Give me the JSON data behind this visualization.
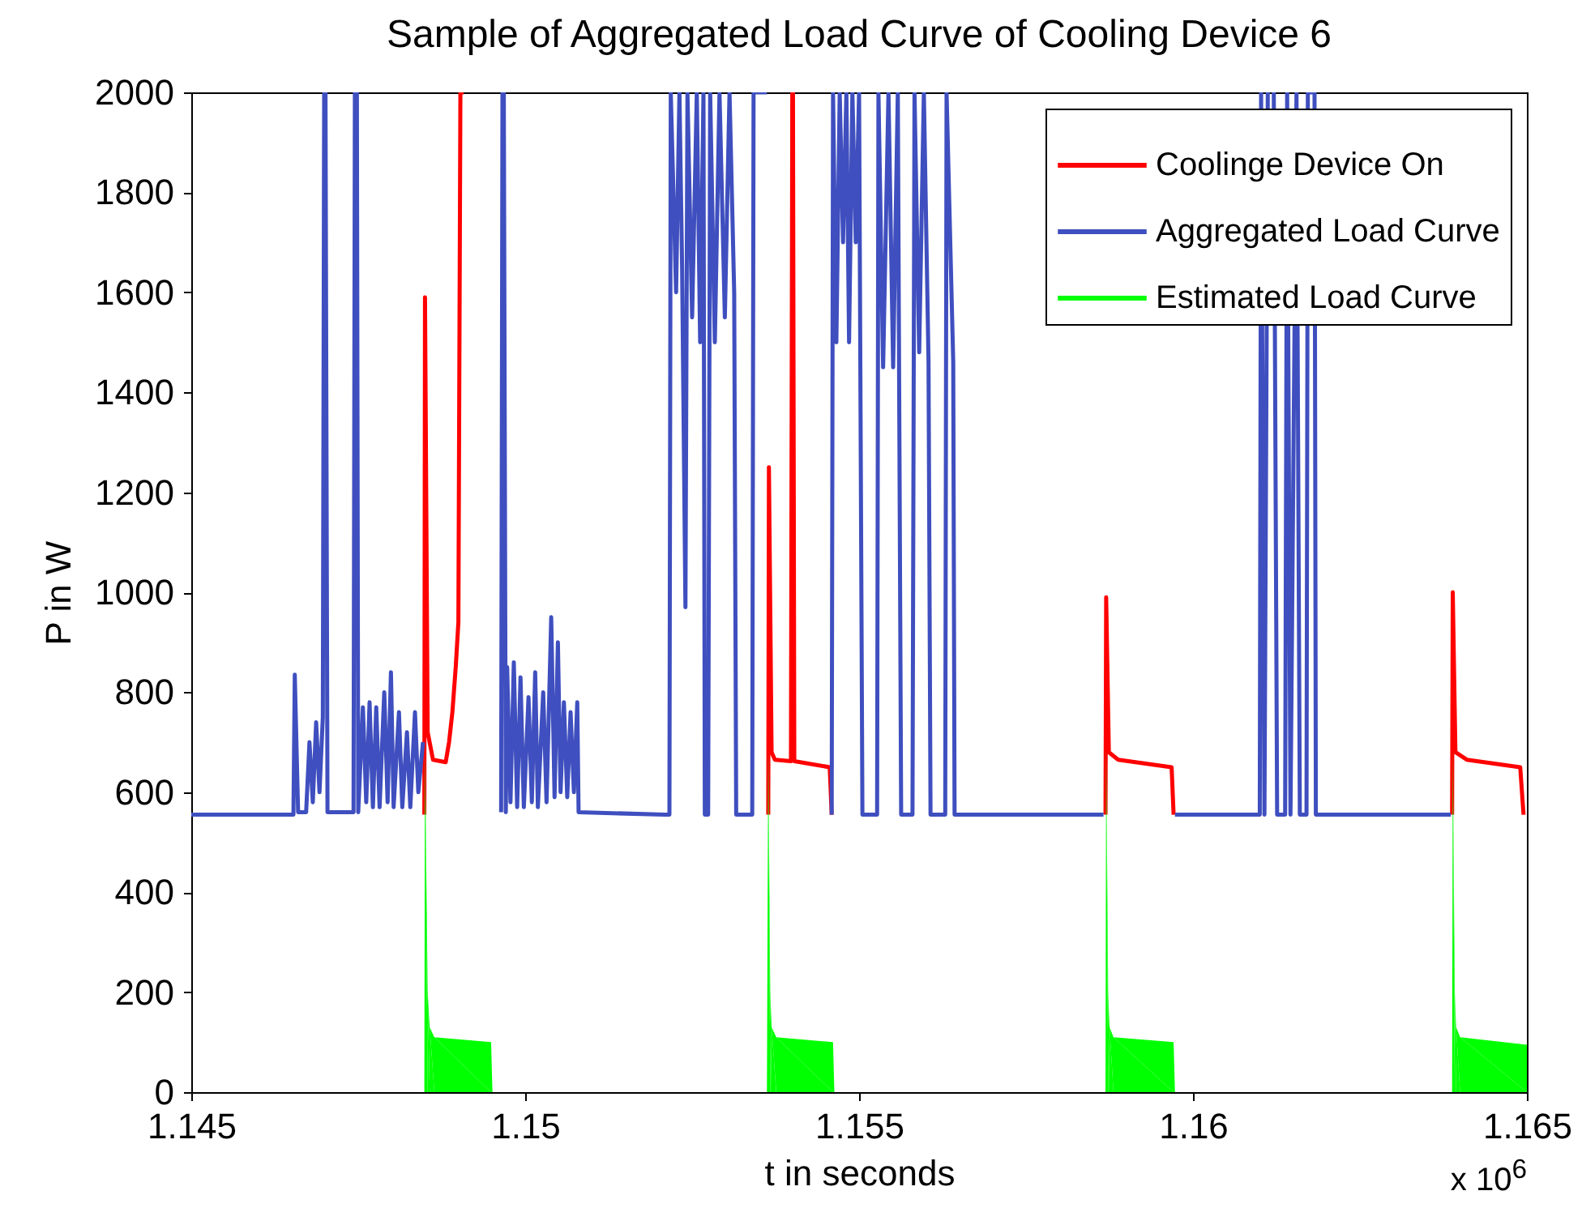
{
  "chart_data": {
    "type": "line",
    "title": "Sample of Aggregated Load Curve of Cooling Device 6",
    "xlabel": "t in seconds",
    "ylabel": "P in W",
    "xlim": [
      1.145,
      1.165
    ],
    "xticks": [
      1.145,
      1.15,
      1.155,
      1.16,
      1.165
    ],
    "ylim": [
      0,
      2000
    ],
    "yticks": [
      0,
      200,
      400,
      600,
      800,
      1000,
      1200,
      1400,
      1600,
      1800,
      2000
    ],
    "legend": "top right",
    "annotations": [
      "x 10$^{6}$"
    ],
    "series": [
      {
        "name": "Coolinge Device On",
        "color": "#ff0000",
        "x": [
          1.14849,
          1.1485,
          1.14854,
          1.14862,
          1.14881,
          1.14886,
          1.14891,
          1.14896,
          1.149,
          1.14903,
          1.14908,
          1.1491,
          1.15364,
          1.15365,
          1.15369,
          1.15374,
          1.15398,
          1.154,
          1.15401,
          1.15403,
          1.15456,
          1.15459,
          1.1546,
          1.15869,
          1.1587,
          1.15874,
          1.15888,
          1.15968,
          1.15971,
          1.15972,
          1.16388,
          1.16389,
          1.16393,
          1.1641,
          1.1649,
          1.16495
        ],
        "values": [
          555,
          1590,
          720,
          665,
          660,
          700,
          760,
          850,
          940,
          2000,
          2000,
          null,
          555,
          1250,
          680,
          665,
          662,
          2000,
          2000,
          662,
          650,
          555,
          null,
          555,
          990,
          680,
          665,
          650,
          555,
          null,
          555,
          1000,
          680,
          665,
          650,
          555
        ]
      },
      {
        "name": "Aggregated Load Curve",
        "color": "#3f4fbf",
        "x": [
          1.145,
          1.14653,
          1.14655,
          1.1466,
          1.14672,
          1.14677,
          1.14682,
          1.14687,
          1.14692,
          1.14697,
          1.14699,
          1.14701,
          1.14704,
          1.14743,
          1.14745,
          1.14748,
          1.1475,
          1.14757,
          1.14762,
          1.14767,
          1.14772,
          1.14777,
          1.14782,
          1.14789,
          1.14794,
          1.14799,
          1.14803,
          1.14811,
          1.14816,
          1.14823,
          1.14828,
          1.14835,
          1.1484,
          1.14847,
          1.1485,
          1.14964,
          1.14966,
          1.14968,
          1.14971,
          1.14973,
          1.14978,
          1.14983,
          1.14988,
          1.14993,
          1.14998,
          1.15005,
          1.1501,
          1.15015,
          1.15019,
          1.15027,
          1.15032,
          1.15039,
          1.15044,
          1.15049,
          1.15053,
          1.15058,
          1.15063,
          1.15068,
          1.15073,
          1.15078,
          1.1508,
          1.15209,
          1.15216,
          1.15218,
          1.15226,
          1.15231,
          1.15235,
          1.1524,
          1.15243,
          1.1525,
          1.15257,
          1.15262,
          1.15267,
          1.15269,
          1.15274,
          1.15277,
          1.15284,
          1.15291,
          1.15299,
          1.15306,
          1.15313,
          1.15316,
          1.1534,
          1.15342,
          1.15362,
          1.15364,
          1.15459,
          1.15461,
          1.15466,
          1.15471,
          1.15476,
          1.15481,
          1.15485,
          1.1549,
          1.15495,
          1.155,
          1.15505,
          1.15527,
          1.15529,
          1.15536,
          1.15544,
          1.15551,
          1.15558,
          1.15563,
          1.1558,
          1.15583,
          1.1559,
          1.15597,
          1.15604,
          1.15607,
          1.15629,
          1.15631,
          1.15641,
          1.15643,
          1.15866,
          1.15869,
          1.15973,
          1.161,
          1.16102,
          1.16107,
          1.16112,
          1.16117,
          1.16121,
          1.16126,
          1.16138,
          1.16141,
          1.16146,
          1.16155,
          1.1616,
          1.1617,
          1.16172,
          1.16182,
          1.16184,
          1.16386
        ],
        "values": [
          555,
          555,
          835,
          560,
          560,
          700,
          580,
          740,
          600,
          750,
          2000,
          2000,
          560,
          560,
          2000,
          2000,
          560,
          770,
          580,
          780,
          570,
          770,
          570,
          800,
          580,
          840,
          570,
          760,
          570,
          720,
          570,
          760,
          600,
          700,
          null,
          560,
          2000,
          2000,
          560,
          850,
          580,
          860,
          570,
          830,
          570,
          790,
          580,
          840,
          570,
          800,
          580,
          950,
          590,
          900,
          600,
          780,
          590,
          760,
          600,
          780,
          560,
          555,
          555,
          2000,
          1600,
          2000,
          1650,
          970,
          2000,
          1550,
          2000,
          1500,
          2000,
          555,
          555,
          2000,
          1500,
          2000,
          1550,
          2000,
          1600,
          555,
          555,
          2000,
          2000,
          null,
          555,
          2000,
          1500,
          2000,
          1700,
          2000,
          1500,
          2000,
          1700,
          2000,
          555,
          555,
          2000,
          1450,
          2000,
          1450,
          2000,
          555,
          555,
          2000,
          1480,
          2000,
          1460,
          555,
          555,
          2000,
          1460,
          555,
          555,
          null,
          555,
          555,
          2000,
          555,
          2000,
          null,
          2000,
          555,
          555,
          2000,
          555,
          2000,
          555,
          555,
          2000,
          2000,
          555,
          555
        ]
      },
      {
        "name": "Estimated Load Curve",
        "color": "#00ff00",
        "type": "area",
        "x": [
          1.145,
          1.14849,
          1.1485,
          1.14854,
          1.14857,
          1.14864,
          1.14949,
          1.14951,
          1.15362,
          1.15364,
          1.15367,
          1.15369,
          1.15376,
          1.15461,
          1.15463,
          1.15869,
          1.1587,
          1.15873,
          1.15875,
          1.15881,
          1.15971,
          1.15973,
          1.16388,
          1.16389,
          1.16392,
          1.16394,
          1.164,
          1.165
        ],
        "values": [
          0,
          0,
          690,
          200,
          130,
          110,
          100,
          0,
          0,
          690,
          200,
          130,
          110,
          100,
          0,
          0,
          690,
          200,
          130,
          110,
          100,
          0,
          0,
          690,
          200,
          130,
          110,
          95
        ]
      }
    ]
  }
}
